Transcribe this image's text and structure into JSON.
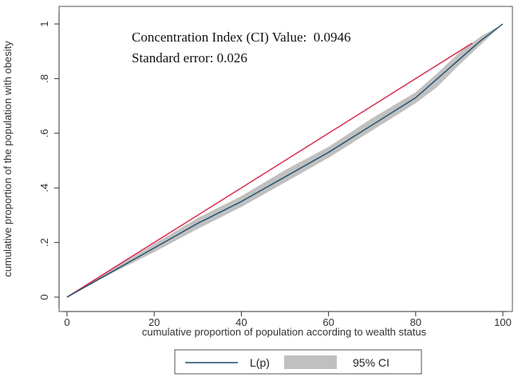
{
  "chart_data": {
    "type": "line",
    "xlabel": "cumulative proportion of population according to wealth status",
    "ylabel": "cumulative proportion of the population with obesity",
    "xlim": [
      0,
      100
    ],
    "ylim": [
      0,
      1
    ],
    "x_ticks": [
      0,
      20,
      40,
      60,
      80,
      100
    ],
    "y_ticks": [
      0,
      0.2,
      0.4,
      0.6,
      0.8,
      1
    ],
    "x_tick_labels": [
      "0",
      "20",
      "40",
      "60",
      "80",
      "100"
    ],
    "y_tick_labels": [
      "0",
      ".2",
      ".4",
      ".6",
      ".8",
      "1"
    ],
    "annotations": [
      "Concentration Index (CI) Value:  0.0946",
      "Standard error: 0.026"
    ],
    "series": [
      {
        "name": "L(p)",
        "color": "#1f4e6b",
        "x": [
          0,
          10,
          20,
          30,
          40,
          50,
          60,
          70,
          80,
          85,
          90,
          95,
          100
        ],
        "y": [
          0,
          0.09,
          0.18,
          0.27,
          0.35,
          0.44,
          0.53,
          0.63,
          0.73,
          0.8,
          0.87,
          0.94,
          1.0
        ]
      },
      {
        "name": "95% CI",
        "type": "band",
        "color": "#c0c0c0",
        "x": [
          0,
          10,
          20,
          30,
          40,
          50,
          60,
          70,
          80,
          85,
          90,
          95,
          100
        ],
        "lower": [
          0,
          0.085,
          0.165,
          0.25,
          0.33,
          0.42,
          0.51,
          0.61,
          0.71,
          0.77,
          0.85,
          0.925,
          1.0
        ],
        "upper": [
          0,
          0.098,
          0.195,
          0.29,
          0.37,
          0.465,
          0.55,
          0.655,
          0.75,
          0.82,
          0.895,
          0.955,
          1.0
        ]
      },
      {
        "name": "Line of equality",
        "color": "#d9304f",
        "x": [
          0,
          93
        ],
        "y": [
          0,
          0.93
        ]
      }
    ],
    "legend": {
      "placement": "bottom",
      "entries": [
        "L(p)",
        "95% CI"
      ]
    }
  }
}
